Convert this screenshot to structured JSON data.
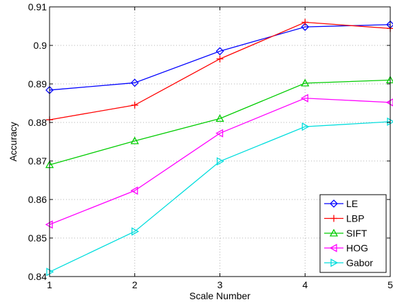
{
  "chart_data": {
    "type": "line",
    "title": "",
    "xlabel": "Scale Number",
    "ylabel": "Accuracy",
    "x": [
      1,
      2,
      3,
      4,
      5
    ],
    "xlim": [
      1,
      5
    ],
    "ylim": [
      0.84,
      0.91
    ],
    "xticks": [
      "1",
      "2",
      "3",
      "4",
      "5"
    ],
    "yticks": [
      "0.84",
      "0.85",
      "0.86",
      "0.87",
      "0.88",
      "0.89",
      "0.9",
      "0.91"
    ],
    "grid": true,
    "legend_position": "bottom-right",
    "series": [
      {
        "name": "LE",
        "color": "#0000ff",
        "marker": "diamond",
        "values": [
          0.8884,
          0.8903,
          0.8985,
          0.9048,
          0.9054
        ]
      },
      {
        "name": "LBP",
        "color": "#ff0000",
        "marker": "plus",
        "values": [
          0.8807,
          0.8845,
          0.8965,
          0.906,
          0.9044
        ]
      },
      {
        "name": "SIFT",
        "color": "#00cc00",
        "marker": "triangle-up",
        "values": [
          0.869,
          0.8752,
          0.881,
          0.8902,
          0.891
        ]
      },
      {
        "name": "HOG",
        "color": "#ff00ff",
        "marker": "triangle-left",
        "values": [
          0.8535,
          0.8623,
          0.8772,
          0.8863,
          0.8852
        ]
      },
      {
        "name": "Gabor",
        "color": "#00dddd",
        "marker": "triangle-right",
        "values": [
          0.8412,
          0.8517,
          0.8699,
          0.8789,
          0.8802
        ]
      }
    ]
  }
}
